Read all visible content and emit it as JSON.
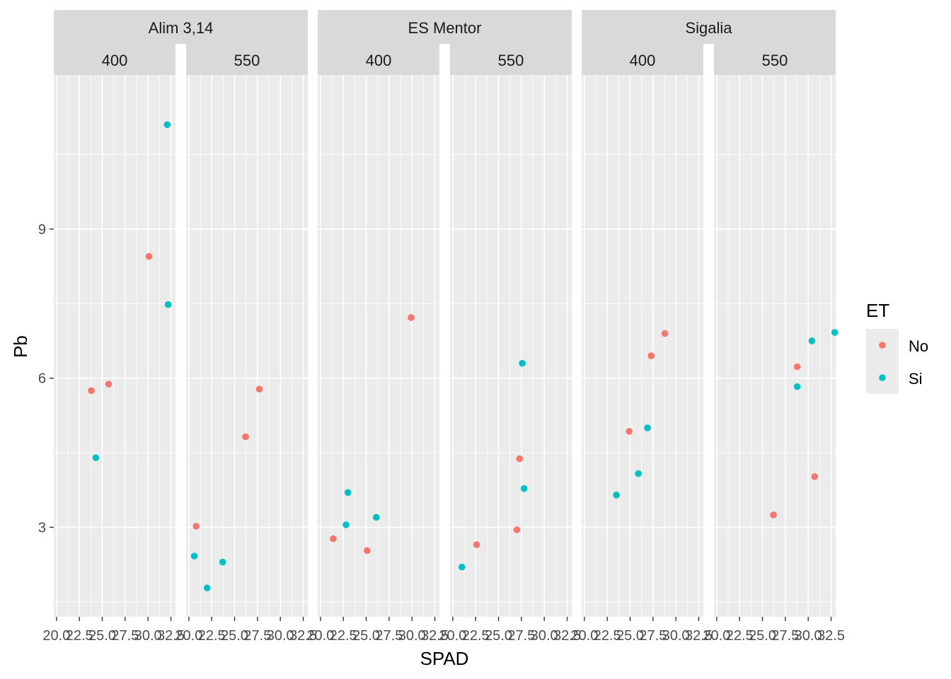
{
  "chart_data": {
    "type": "scatter",
    "x_label": "SPAD",
    "y_label": "Pb",
    "x_ticks": [
      "20.0",
      "22.5",
      "25.0",
      "27.5",
      "30.0",
      "32.5"
    ],
    "y_ticks": [
      "3",
      "6",
      "9"
    ],
    "xlim": [
      19.7,
      33.0
    ],
    "ylim": [
      1.2,
      12.1
    ],
    "legend": {
      "title": "ET",
      "position": "right",
      "entries": [
        {
          "name": "No",
          "color": "#F8766D"
        },
        {
          "name": "Si",
          "color": "#00BFC4"
        }
      ]
    },
    "facets": [
      {
        "group": "Alim 3,14",
        "panels": [
          {
            "label": "400",
            "points": [
              {
                "x": 23.8,
                "y": 5.75,
                "et": "No"
              },
              {
                "x": 25.7,
                "y": 5.88,
                "et": "No"
              },
              {
                "x": 30.1,
                "y": 8.45,
                "et": "No"
              },
              {
                "x": 24.3,
                "y": 4.4,
                "et": "Si"
              },
              {
                "x": 32.1,
                "y": 11.1,
                "et": "Si"
              },
              {
                "x": 32.2,
                "y": 7.48,
                "et": "Si"
              }
            ]
          },
          {
            "label": "550",
            "points": [
              {
                "x": 20.8,
                "y": 3.02,
                "et": "No"
              },
              {
                "x": 26.2,
                "y": 4.82,
                "et": "No"
              },
              {
                "x": 27.7,
                "y": 5.78,
                "et": "No"
              },
              {
                "x": 20.6,
                "y": 2.42,
                "et": "Si"
              },
              {
                "x": 22.0,
                "y": 1.78,
                "et": "Si"
              },
              {
                "x": 23.7,
                "y": 2.3,
                "et": "Si"
              }
            ]
          }
        ]
      },
      {
        "group": "ES Mentor",
        "panels": [
          {
            "label": "400",
            "points": [
              {
                "x": 21.4,
                "y": 2.77,
                "et": "No"
              },
              {
                "x": 25.1,
                "y": 2.53,
                "et": "No"
              },
              {
                "x": 29.9,
                "y": 7.22,
                "et": "No"
              },
              {
                "x": 22.8,
                "y": 3.05,
                "et": "Si"
              },
              {
                "x": 23.0,
                "y": 3.7,
                "et": "Si"
              },
              {
                "x": 26.1,
                "y": 3.2,
                "et": "Si"
              }
            ]
          },
          {
            "label": "550",
            "points": [
              {
                "x": 22.6,
                "y": 2.65,
                "et": "No"
              },
              {
                "x": 27.0,
                "y": 2.95,
                "et": "No"
              },
              {
                "x": 27.3,
                "y": 4.38,
                "et": "No"
              },
              {
                "x": 21.0,
                "y": 2.2,
                "et": "Si"
              },
              {
                "x": 27.6,
                "y": 6.3,
                "et": "Si"
              },
              {
                "x": 27.8,
                "y": 3.78,
                "et": "Si"
              }
            ]
          }
        ]
      },
      {
        "group": "Sigalia",
        "panels": [
          {
            "label": "400",
            "points": [
              {
                "x": 24.9,
                "y": 4.93,
                "et": "No"
              },
              {
                "x": 27.3,
                "y": 6.45,
                "et": "No"
              },
              {
                "x": 28.8,
                "y": 6.9,
                "et": "No"
              },
              {
                "x": 23.5,
                "y": 3.65,
                "et": "Si"
              },
              {
                "x": 25.9,
                "y": 4.08,
                "et": "Si"
              },
              {
                "x": 26.9,
                "y": 5.0,
                "et": "Si"
              }
            ]
          },
          {
            "label": "550",
            "points": [
              {
                "x": 26.2,
                "y": 3.25,
                "et": "No"
              },
              {
                "x": 28.8,
                "y": 6.23,
                "et": "No"
              },
              {
                "x": 30.7,
                "y": 4.02,
                "et": "No"
              },
              {
                "x": 28.8,
                "y": 5.83,
                "et": "Si"
              },
              {
                "x": 30.4,
                "y": 6.75,
                "et": "Si"
              },
              {
                "x": 32.9,
                "y": 6.92,
                "et": "Si"
              }
            ]
          }
        ]
      }
    ]
  }
}
